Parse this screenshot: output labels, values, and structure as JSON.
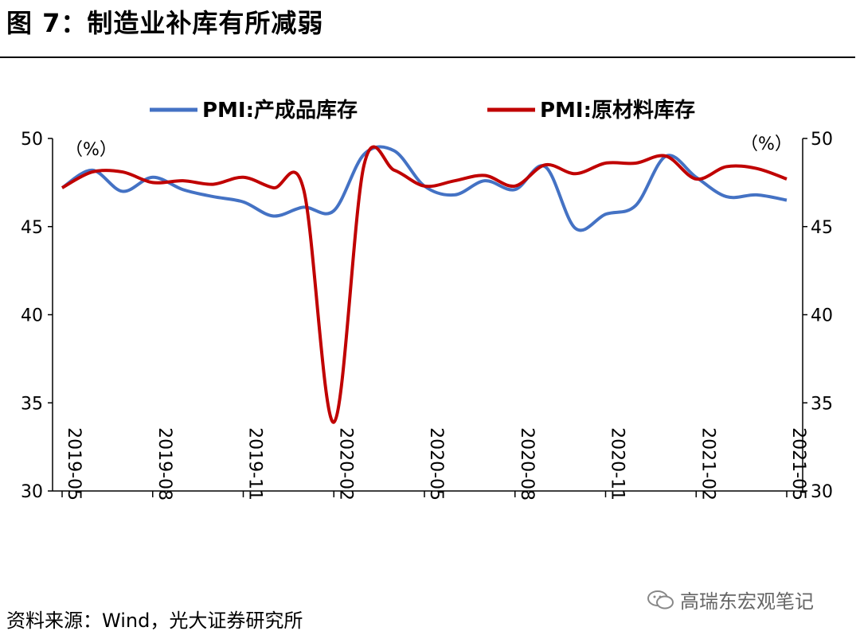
{
  "title": "图 7：制造业补库有所减弱",
  "source": "资料来源：Wind，光大证券研究所",
  "watermark": "高瑞东宏观笔记",
  "chart_data": {
    "type": "line",
    "y_unit_left": "（%）",
    "y_unit_right": "（%）",
    "ylim": [
      30,
      50
    ],
    "yticks": [
      30,
      35,
      40,
      45,
      50
    ],
    "x": [
      "2019-05",
      "2019-06",
      "2019-07",
      "2019-08",
      "2019-09",
      "2019-10",
      "2019-11",
      "2019-12",
      "2020-01",
      "2020-02",
      "2020-03",
      "2020-04",
      "2020-05",
      "2020-06",
      "2020-07",
      "2020-08",
      "2020-09",
      "2020-10",
      "2020-11",
      "2020-12",
      "2021-01",
      "2021-02",
      "2021-03",
      "2021-04",
      "2021-05"
    ],
    "xtick_labels": [
      "2019-05",
      "2019-08",
      "2019-11",
      "2020-02",
      "2020-05",
      "2020-08",
      "2020-11",
      "2021-02",
      "2021-05"
    ],
    "series": [
      {
        "name": "PMI:产成品库存",
        "color": "#4472C4",
        "values": [
          47.2,
          48.2,
          47.0,
          47.8,
          47.1,
          46.7,
          46.4,
          45.6,
          46.1,
          45.9,
          49.1,
          49.3,
          47.3,
          46.8,
          47.6,
          47.1,
          48.4,
          44.9,
          45.7,
          46.2,
          49.0,
          47.8,
          46.7,
          46.8,
          46.5
        ]
      },
      {
        "name": "PMI:原材料库存",
        "color": "#C00000",
        "values": [
          47.2,
          48.1,
          48.1,
          47.5,
          47.6,
          47.4,
          47.8,
          47.2,
          47.1,
          33.9,
          48.5,
          48.2,
          47.3,
          47.6,
          47.9,
          47.3,
          48.5,
          48.0,
          48.6,
          48.6,
          49.0,
          47.7,
          48.4,
          48.3,
          47.7
        ]
      }
    ],
    "legend_position": "top",
    "grid": false
  }
}
